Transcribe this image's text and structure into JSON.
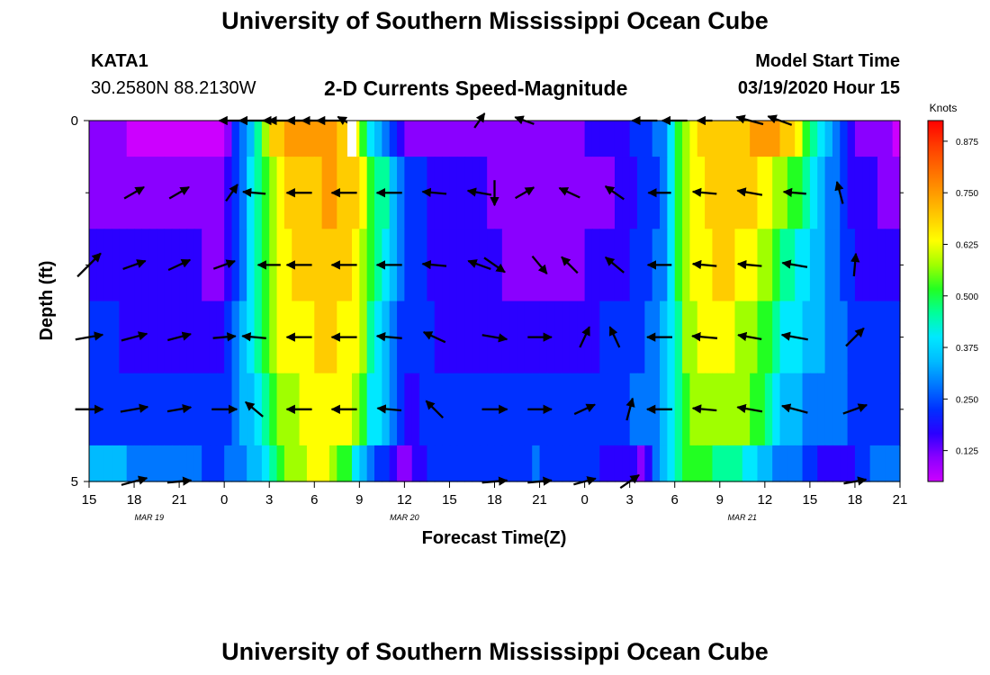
{
  "title_top": "University of Southern Mississippi Ocean Cube",
  "title_bottom": "University of Southern Mississippi Ocean Cube",
  "station": {
    "id": "KATA1",
    "coords": "30.2580N 88.2130W"
  },
  "model": {
    "label": "Model Start Time",
    "value": "03/19/2020 Hour 15"
  },
  "chart_data": {
    "type": "heatmap",
    "title": "2-D Currents Speed-Magnitude",
    "xlabel": "Forecast Time(Z)",
    "ylabel": "Depth (ft)",
    "x_hour_range": [
      0,
      54
    ],
    "ylim": [
      0,
      5
    ],
    "y_tick_labels": [
      {
        "depth": 0,
        "label": "0"
      },
      {
        "depth": 5,
        "label": "5"
      }
    ],
    "y_minor_ticks": [
      1,
      2,
      3,
      4
    ],
    "x_tick_labels": [
      "15",
      "18",
      "21",
      "0",
      "3",
      "6",
      "9",
      "12",
      "15",
      "18",
      "21",
      "0",
      "3",
      "6",
      "9",
      "12",
      "15",
      "18",
      "21"
    ],
    "date_labels": [
      {
        "hour": 4,
        "label": "MAR 19"
      },
      {
        "hour": 21,
        "label": "MAR 20"
      },
      {
        "hour": 43.5,
        "label": "MAR 21"
      }
    ],
    "colorbar": {
      "unit": "Knots",
      "min": 0.05,
      "max": 0.925,
      "ticks": [
        "0.125",
        "0.250",
        "0.375",
        "0.500",
        "0.625",
        "0.750",
        "0.875"
      ],
      "tick_values": [
        0.125,
        0.25,
        0.375,
        0.5,
        0.625,
        0.75,
        0.875
      ],
      "colors": [
        "#cc00ff",
        "#8a00ff",
        "#2b00ff",
        "#0030ff",
        "#0077ff",
        "#00bbff",
        "#00e8ff",
        "#00ff9a",
        "#22ff22",
        "#a0ff00",
        "#ffff00",
        "#ffcc00",
        "#ff9a00",
        "#ff6a00",
        "#ff3a00",
        "#ff0000"
      ]
    },
    "speed_profiles": [
      {
        "layer": "0-0.5",
        "hours": [
          0,
          5,
          9,
          10,
          11,
          12,
          13,
          16,
          18,
          18.5,
          20,
          21,
          26,
          29,
          35,
          38,
          39,
          40,
          42,
          43,
          46,
          47,
          48,
          50,
          51,
          53,
          54
        ],
        "values": [
          0.12,
          0.09,
          0.06,
          0.28,
          0.4,
          0.65,
          0.72,
          0.72,
          0.62,
          0.45,
          0.28,
          0.14,
          0.14,
          0.11,
          0.18,
          0.28,
          0.45,
          0.64,
          0.7,
          0.7,
          0.72,
          0.65,
          0.48,
          0.25,
          0.15,
          0.12,
          0.08
        ]
      },
      {
        "layer": "0.5-1.5",
        "hours": [
          0,
          9,
          10,
          11,
          12,
          13,
          16,
          18,
          18.5,
          20,
          21,
          24,
          31,
          35,
          38,
          39,
          40,
          42,
          44,
          45,
          46,
          47,
          48,
          50,
          51,
          53,
          54
        ],
        "values": [
          0.15,
          0.14,
          0.27,
          0.42,
          0.55,
          0.65,
          0.72,
          0.68,
          0.55,
          0.42,
          0.25,
          0.17,
          0.14,
          0.15,
          0.27,
          0.45,
          0.62,
          0.7,
          0.68,
          0.62,
          0.55,
          0.52,
          0.42,
          0.25,
          0.18,
          0.15,
          0.15
        ]
      },
      {
        "layer": "1.5-2.5",
        "hours": [
          0,
          9,
          10,
          11,
          12,
          13,
          16,
          18,
          18.5,
          20,
          21,
          24,
          31,
          35,
          38,
          39,
          40,
          42,
          43,
          45,
          46,
          47,
          48,
          50,
          51,
          53,
          54
        ],
        "values": [
          0.2,
          0.15,
          0.28,
          0.42,
          0.55,
          0.64,
          0.7,
          0.64,
          0.52,
          0.38,
          0.25,
          0.17,
          0.15,
          0.17,
          0.28,
          0.45,
          0.6,
          0.68,
          0.65,
          0.58,
          0.48,
          0.45,
          0.38,
          0.28,
          0.2,
          0.18,
          0.18
        ]
      },
      {
        "layer": "2.5-3.5",
        "hours": [
          0,
          9,
          10,
          11,
          12,
          13,
          16,
          18,
          18.5,
          20,
          21,
          24,
          31,
          35,
          38,
          39,
          40,
          42,
          43,
          45,
          46,
          47,
          48,
          50,
          51,
          53,
          54
        ],
        "values": [
          0.22,
          0.19,
          0.3,
          0.42,
          0.55,
          0.62,
          0.67,
          0.62,
          0.5,
          0.35,
          0.24,
          0.2,
          0.2,
          0.22,
          0.3,
          0.45,
          0.58,
          0.64,
          0.6,
          0.52,
          0.42,
          0.4,
          0.36,
          0.3,
          0.24,
          0.22,
          0.22
        ]
      },
      {
        "layer": "3.5-4.5",
        "hours": [
          0,
          9,
          10,
          11,
          12,
          13,
          16,
          18,
          18.5,
          20,
          21,
          24,
          31,
          35,
          38,
          39,
          40,
          42,
          43,
          45,
          46,
          47,
          48,
          50,
          51,
          53,
          54
        ],
        "values": [
          0.26,
          0.22,
          0.3,
          0.4,
          0.5,
          0.58,
          0.64,
          0.58,
          0.45,
          0.32,
          0.2,
          0.25,
          0.25,
          0.25,
          0.3,
          0.45,
          0.56,
          0.6,
          0.58,
          0.5,
          0.38,
          0.34,
          0.3,
          0.28,
          0.26,
          0.25,
          0.25
        ]
      },
      {
        "layer": "4.5-5",
        "hours": [
          0,
          3,
          8,
          10,
          11,
          12,
          13,
          15,
          16,
          17,
          18,
          19,
          21,
          22,
          24,
          30,
          35,
          37,
          38,
          39,
          40,
          42,
          43,
          44,
          46,
          47,
          48,
          50,
          51,
          52,
          53,
          54
        ],
        "values": [
          0.36,
          0.32,
          0.26,
          0.28,
          0.35,
          0.45,
          0.55,
          0.62,
          0.6,
          0.52,
          0.4,
          0.28,
          0.12,
          0.2,
          0.25,
          0.27,
          0.2,
          0.15,
          0.35,
          0.45,
          0.52,
          0.48,
          0.45,
          0.4,
          0.3,
          0.28,
          0.24,
          0.16,
          0.2,
          0.26,
          0.3,
          0.28
        ]
      }
    ],
    "vectors": [
      {
        "depth": 0,
        "arrows": [
          [
            9.5,
            180,
            2
          ],
          [
            10,
            0,
            0.3
          ],
          [
            11,
            180,
            2.4
          ],
          [
            12,
            180,
            1
          ],
          [
            13,
            180,
            2.5
          ],
          [
            14,
            180,
            2
          ],
          [
            15,
            180,
            2
          ],
          [
            16,
            180,
            2
          ],
          [
            17,
            150,
            1.2
          ],
          [
            26,
            55,
            1.4
          ],
          [
            29,
            160,
            1.6
          ],
          [
            37,
            180,
            2
          ],
          [
            39,
            180,
            2
          ],
          [
            41,
            180,
            1.2
          ],
          [
            44,
            165,
            2.2
          ],
          [
            46,
            160,
            2
          ]
        ]
      },
      {
        "depth": 1,
        "arrows": [
          [
            3,
            30,
            1.8
          ],
          [
            6,
            30,
            1.8
          ],
          [
            9.5,
            55,
            1.6
          ],
          [
            11,
            175,
            1.8
          ],
          [
            14,
            180,
            2
          ],
          [
            17,
            180,
            2
          ],
          [
            20,
            180,
            2
          ],
          [
            23,
            175,
            1.9
          ],
          [
            26,
            170,
            1.9
          ],
          [
            27,
            -90,
            2
          ],
          [
            29,
            30,
            1.7
          ],
          [
            32,
            155,
            1.8
          ],
          [
            35,
            145,
            1.8
          ],
          [
            38,
            180,
            1.8
          ],
          [
            41,
            175,
            1.9
          ],
          [
            44,
            170,
            2
          ],
          [
            47,
            175,
            1.8
          ],
          [
            50,
            105,
            1.8
          ]
        ]
      },
      {
        "depth": 2,
        "arrows": [
          [
            0,
            45,
            2.6
          ],
          [
            3,
            20,
            1.9
          ],
          [
            6,
            25,
            1.9
          ],
          [
            9,
            20,
            1.8
          ],
          [
            12,
            180,
            1.8
          ],
          [
            14,
            180,
            2
          ],
          [
            17,
            180,
            2
          ],
          [
            20,
            180,
            2
          ],
          [
            23,
            175,
            1.9
          ],
          [
            26,
            160,
            1.9
          ],
          [
            27,
            -35,
            2
          ],
          [
            30,
            -50,
            1.8
          ],
          [
            32,
            135,
            1.8
          ],
          [
            35,
            140,
            1.9
          ],
          [
            38,
            180,
            1.9
          ],
          [
            41,
            175,
            1.9
          ],
          [
            44,
            175,
            1.9
          ],
          [
            47,
            170,
            2
          ],
          [
            51,
            85,
            1.8
          ]
        ]
      },
      {
        "depth": 3,
        "arrows": [
          [
            0,
            10,
            2.2
          ],
          [
            3,
            15,
            2.1
          ],
          [
            6,
            15,
            1.9
          ],
          [
            9,
            5,
            1.8
          ],
          [
            11,
            175,
            1.9
          ],
          [
            14,
            180,
            2
          ],
          [
            17,
            180,
            2
          ],
          [
            20,
            175,
            2
          ],
          [
            23,
            155,
            1.9
          ],
          [
            27,
            -10,
            2
          ],
          [
            30,
            0,
            1.9
          ],
          [
            33,
            65,
            1.8
          ],
          [
            35,
            115,
            1.8
          ],
          [
            38,
            180,
            2
          ],
          [
            41,
            175,
            2
          ],
          [
            44,
            170,
            1.9
          ],
          [
            47,
            170,
            2.1
          ],
          [
            51,
            45,
            2
          ]
        ]
      },
      {
        "depth": 4,
        "arrows": [
          [
            0,
            0,
            2.2
          ],
          [
            3,
            10,
            2.2
          ],
          [
            6,
            10,
            1.9
          ],
          [
            9,
            0,
            2
          ],
          [
            11,
            140,
            1.8
          ],
          [
            14,
            180,
            2
          ],
          [
            17,
            180,
            2
          ],
          [
            20,
            175,
            1.9
          ],
          [
            23,
            135,
            1.9
          ],
          [
            27,
            0,
            2
          ],
          [
            30,
            0,
            1.9
          ],
          [
            33,
            25,
            1.8
          ],
          [
            36,
            75,
            1.8
          ],
          [
            38,
            180,
            2
          ],
          [
            41,
            175,
            1.9
          ],
          [
            44,
            170,
            2
          ],
          [
            47,
            165,
            2.1
          ],
          [
            51,
            20,
            2
          ]
        ]
      },
      {
        "depth": 5,
        "arrows": [
          [
            3,
            15,
            2.1
          ],
          [
            6,
            5,
            1.9
          ],
          [
            27,
            5,
            2
          ],
          [
            30,
            5,
            1.9
          ],
          [
            33,
            15,
            1.8
          ],
          [
            36,
            35,
            1.8
          ],
          [
            51,
            10,
            1.8
          ]
        ]
      }
    ]
  }
}
